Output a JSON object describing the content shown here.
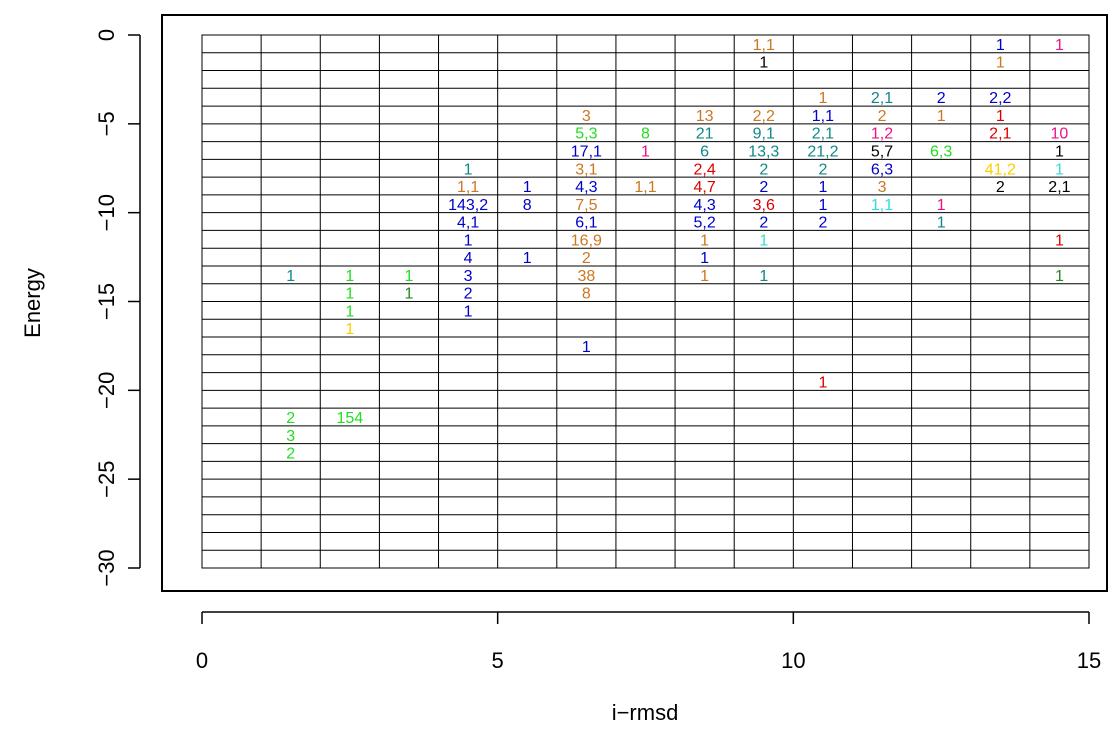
{
  "chart_data": {
    "type": "scatter",
    "xlabel": "i−rmsd",
    "ylabel": "Energy",
    "xlim": [
      0,
      15
    ],
    "ylim": [
      -30,
      0
    ],
    "x_ticks": [
      0,
      5,
      10,
      15
    ],
    "x_tick_labels": [
      "0",
      "5",
      "10",
      "15"
    ],
    "y_ticks": [
      0,
      -5,
      -10,
      -15,
      -20,
      -25,
      -30
    ],
    "y_tick_labels": [
      "0",
      "−5",
      "−10",
      "−15",
      "−20",
      "−25",
      "−30"
    ],
    "grid": true,
    "grid_x_step": 1,
    "grid_y_step": 1,
    "colors": {
      "black": "#000000",
      "red": "#dd0000",
      "green": "#22dd22",
      "blue": "#0000cc",
      "cyan": "#33dddd",
      "magenta": "#ee1188",
      "yellow": "#ffcc00",
      "teal": "#118888",
      "darkgreen": "#228822",
      "orange": "#cc7722",
      "violet": "#7733cc"
    },
    "points": [
      {
        "x": 1.5,
        "y": -13.5,
        "label": "1",
        "color": "teal"
      },
      {
        "x": 2.5,
        "y": -13.5,
        "label": "1",
        "color": "green"
      },
      {
        "x": 2.5,
        "y": -14.5,
        "label": "1",
        "color": "green"
      },
      {
        "x": 2.5,
        "y": -15.5,
        "label": "1",
        "color": "green"
      },
      {
        "x": 2.5,
        "y": -16.5,
        "label": "1",
        "color": "yellow"
      },
      {
        "x": 3.5,
        "y": -13.5,
        "label": "1",
        "color": "green"
      },
      {
        "x": 3.5,
        "y": -14.5,
        "label": "1",
        "color": "darkgreen"
      },
      {
        "x": 4.5,
        "y": -7.5,
        "label": "1",
        "color": "teal"
      },
      {
        "x": 4.5,
        "y": -8.5,
        "label": "1,1",
        "color": "orange"
      },
      {
        "x": 4.5,
        "y": -9.5,
        "label": "143,2",
        "color": "blue"
      },
      {
        "x": 4.5,
        "y": -10.5,
        "label": "4,1",
        "color": "blue"
      },
      {
        "x": 4.5,
        "y": -11.5,
        "label": "1",
        "color": "blue"
      },
      {
        "x": 4.5,
        "y": -12.5,
        "label": "4",
        "color": "blue"
      },
      {
        "x": 4.5,
        "y": -13.5,
        "label": "3",
        "color": "blue"
      },
      {
        "x": 4.5,
        "y": -14.5,
        "label": "2",
        "color": "blue"
      },
      {
        "x": 4.5,
        "y": -15.5,
        "label": "1",
        "color": "blue"
      },
      {
        "x": 5.5,
        "y": -8.5,
        "label": "1",
        "color": "blue"
      },
      {
        "x": 5.5,
        "y": -9.5,
        "label": "8",
        "color": "blue"
      },
      {
        "x": 5.5,
        "y": -12.5,
        "label": "1",
        "color": "blue"
      },
      {
        "x": 6.5,
        "y": -4.5,
        "label": "3",
        "color": "orange"
      },
      {
        "x": 6.5,
        "y": -5.5,
        "label": "5,3",
        "color": "green"
      },
      {
        "x": 6.5,
        "y": -6.5,
        "label": "17,1",
        "color": "blue"
      },
      {
        "x": 6.5,
        "y": -7.5,
        "label": "3,1",
        "color": "orange"
      },
      {
        "x": 6.5,
        "y": -8.5,
        "label": "4,3",
        "color": "blue"
      },
      {
        "x": 6.5,
        "y": -9.5,
        "label": "7,5",
        "color": "orange"
      },
      {
        "x": 6.5,
        "y": -10.5,
        "label": "6,1",
        "color": "blue"
      },
      {
        "x": 6.5,
        "y": -11.5,
        "label": "16,9",
        "color": "orange"
      },
      {
        "x": 6.5,
        "y": -12.5,
        "label": "2",
        "color": "orange"
      },
      {
        "x": 6.5,
        "y": -13.5,
        "label": "38",
        "color": "orange"
      },
      {
        "x": 6.5,
        "y": -14.5,
        "label": "8",
        "color": "orange"
      },
      {
        "x": 6.5,
        "y": -17.5,
        "label": "1",
        "color": "blue"
      },
      {
        "x": 7.5,
        "y": -5.5,
        "label": "8",
        "color": "green"
      },
      {
        "x": 7.5,
        "y": -6.5,
        "label": "1",
        "color": "magenta"
      },
      {
        "x": 7.5,
        "y": -8.5,
        "label": "1,1",
        "color": "orange"
      },
      {
        "x": 8.5,
        "y": -4.5,
        "label": "13",
        "color": "orange"
      },
      {
        "x": 8.5,
        "y": -5.5,
        "label": "21",
        "color": "teal"
      },
      {
        "x": 8.5,
        "y": -6.5,
        "label": "6",
        "color": "teal"
      },
      {
        "x": 8.5,
        "y": -7.5,
        "label": "2,4",
        "color": "red"
      },
      {
        "x": 8.5,
        "y": -8.5,
        "label": "4,7",
        "color": "red"
      },
      {
        "x": 8.5,
        "y": -9.5,
        "label": "4,3",
        "color": "blue"
      },
      {
        "x": 8.5,
        "y": -10.5,
        "label": "5,2",
        "color": "blue"
      },
      {
        "x": 8.5,
        "y": -11.5,
        "label": "1",
        "color": "orange"
      },
      {
        "x": 8.5,
        "y": -12.5,
        "label": "1",
        "color": "blue"
      },
      {
        "x": 8.5,
        "y": -13.5,
        "label": "1",
        "color": "orange"
      },
      {
        "x": 9.5,
        "y": -0.5,
        "label": "1,1",
        "color": "orange"
      },
      {
        "x": 9.5,
        "y": -1.5,
        "label": "1",
        "color": "black"
      },
      {
        "x": 9.5,
        "y": -4.5,
        "label": "2,2",
        "color": "orange"
      },
      {
        "x": 9.5,
        "y": -5.5,
        "label": "9,1",
        "color": "teal"
      },
      {
        "x": 9.5,
        "y": -6.5,
        "label": "13,3",
        "color": "teal"
      },
      {
        "x": 9.5,
        "y": -7.5,
        "label": "2",
        "color": "teal"
      },
      {
        "x": 9.5,
        "y": -8.5,
        "label": "2",
        "color": "blue"
      },
      {
        "x": 9.5,
        "y": -9.5,
        "label": "3,6",
        "color": "red"
      },
      {
        "x": 9.5,
        "y": -10.5,
        "label": "2",
        "color": "blue"
      },
      {
        "x": 9.5,
        "y": -11.5,
        "label": "1",
        "color": "cyan"
      },
      {
        "x": 9.5,
        "y": -13.5,
        "label": "1",
        "color": "teal"
      },
      {
        "x": 10.5,
        "y": -3.5,
        "label": "1",
        "color": "orange"
      },
      {
        "x": 10.5,
        "y": -4.5,
        "label": "1,1",
        "color": "blue"
      },
      {
        "x": 10.5,
        "y": -5.5,
        "label": "2,1",
        "color": "teal"
      },
      {
        "x": 10.5,
        "y": -6.5,
        "label": "21,2",
        "color": "teal"
      },
      {
        "x": 10.5,
        "y": -7.5,
        "label": "2",
        "color": "teal"
      },
      {
        "x": 10.5,
        "y": -8.5,
        "label": "1",
        "color": "blue"
      },
      {
        "x": 10.5,
        "y": -9.5,
        "label": "1",
        "color": "blue"
      },
      {
        "x": 10.5,
        "y": -10.5,
        "label": "2",
        "color": "blue"
      },
      {
        "x": 10.5,
        "y": -19.5,
        "label": "1",
        "color": "red"
      },
      {
        "x": 11.5,
        "y": -3.5,
        "label": "2,1",
        "color": "teal"
      },
      {
        "x": 11.5,
        "y": -4.5,
        "label": "2",
        "color": "orange"
      },
      {
        "x": 11.5,
        "y": -5.5,
        "label": "1,2",
        "color": "magenta"
      },
      {
        "x": 11.5,
        "y": -6.5,
        "label": "5,7",
        "color": "black"
      },
      {
        "x": 11.5,
        "y": -7.5,
        "label": "6,3",
        "color": "blue"
      },
      {
        "x": 11.5,
        "y": -8.5,
        "label": "3",
        "color": "orange"
      },
      {
        "x": 11.5,
        "y": -9.5,
        "label": "1,1",
        "color": "cyan"
      },
      {
        "x": 12.5,
        "y": -3.5,
        "label": "2",
        "color": "blue"
      },
      {
        "x": 12.5,
        "y": -4.5,
        "label": "1",
        "color": "orange"
      },
      {
        "x": 12.5,
        "y": -6.5,
        "label": "6,3",
        "color": "green"
      },
      {
        "x": 12.5,
        "y": -9.5,
        "label": "1",
        "color": "magenta"
      },
      {
        "x": 12.5,
        "y": -10.5,
        "label": "1",
        "color": "teal"
      },
      {
        "x": 13.5,
        "y": -0.5,
        "label": "1",
        "color": "blue"
      },
      {
        "x": 13.5,
        "y": -1.5,
        "label": "1",
        "color": "orange"
      },
      {
        "x": 13.5,
        "y": -3.5,
        "label": "2,2",
        "color": "blue"
      },
      {
        "x": 13.5,
        "y": -4.5,
        "label": "1",
        "color": "red"
      },
      {
        "x": 13.5,
        "y": -5.5,
        "label": "2,1",
        "color": "red"
      },
      {
        "x": 13.5,
        "y": -7.5,
        "label": "41,2",
        "color": "yellow"
      },
      {
        "x": 13.5,
        "y": -8.5,
        "label": "2",
        "color": "black"
      },
      {
        "x": 14.5,
        "y": -0.5,
        "label": "1",
        "color": "magenta"
      },
      {
        "x": 14.5,
        "y": -5.5,
        "label": "10",
        "color": "magenta"
      },
      {
        "x": 14.5,
        "y": -6.5,
        "label": "1",
        "color": "black"
      },
      {
        "x": 14.5,
        "y": -7.5,
        "label": "1",
        "color": "cyan"
      },
      {
        "x": 14.5,
        "y": -8.5,
        "label": "2,1",
        "color": "black"
      },
      {
        "x": 14.5,
        "y": -11.5,
        "label": "1",
        "color": "red"
      },
      {
        "x": 14.5,
        "y": -13.5,
        "label": "1",
        "color": "darkgreen"
      },
      {
        "x": 1.5,
        "y": -21.5,
        "label": "2",
        "color": "green"
      },
      {
        "x": 1.5,
        "y": -22.5,
        "label": "3",
        "color": "green"
      },
      {
        "x": 1.5,
        "y": -23.5,
        "label": "2",
        "color": "green"
      },
      {
        "x": 2.5,
        "y": -21.5,
        "label": "154",
        "color": "green"
      }
    ]
  }
}
